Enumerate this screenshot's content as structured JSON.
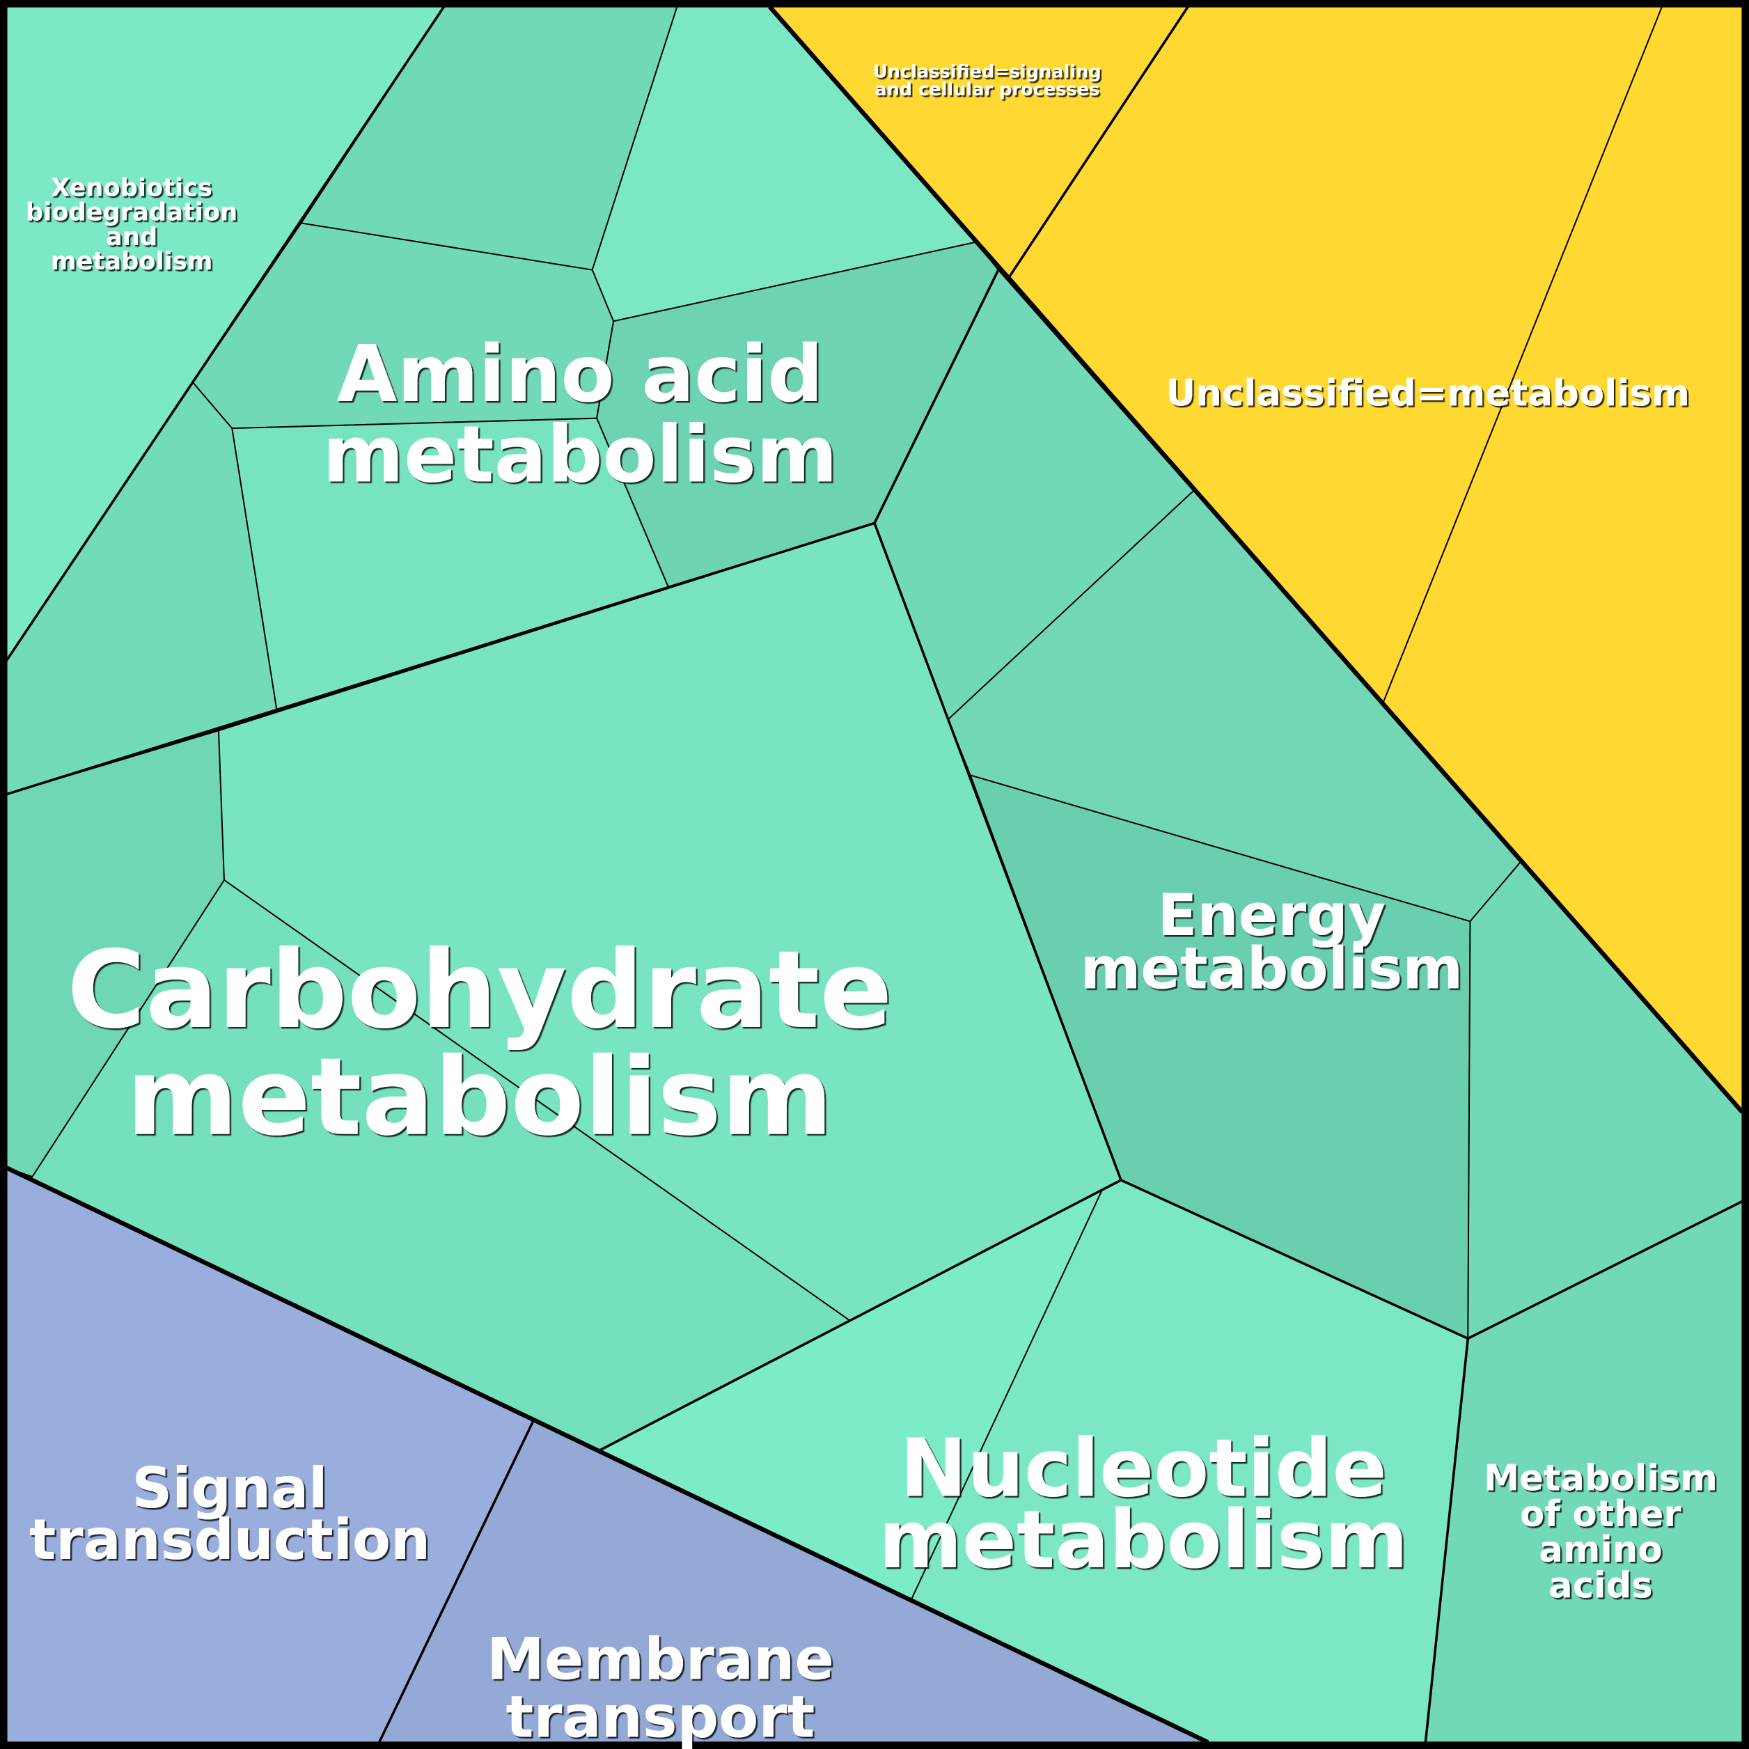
{
  "colors": {
    "metabolism_light": "#7BE9C6",
    "metabolism_mid": "#72D9B8",
    "metabolism_dark": "#6ACFB0",
    "unclassified": "#FFD932",
    "signal": "#9AAEDE",
    "membrane": "#95A9D6",
    "border": "#000000"
  },
  "labels": {
    "xenobiotics": [
      "Xenobiotics",
      "biodegradation",
      "and",
      "metabolism"
    ],
    "unclassified_signaling": [
      "Unclassified=signaling",
      "and cellular processes"
    ],
    "amino_acid": [
      "Amino acid",
      "metabolism"
    ],
    "unclassified_metabolism": [
      "Unclassified=metabolism"
    ],
    "carbohydrate": [
      "Carbohydrate",
      "metabolism"
    ],
    "energy": [
      "Energy",
      "metabolism"
    ],
    "nucleotide": [
      "Nucleotide",
      "metabolism"
    ],
    "other_amino": [
      "Metabolism",
      "of other",
      "amino",
      "acids"
    ],
    "signal": [
      "Signal",
      "transduction"
    ],
    "membrane": [
      "Membrane",
      "transport"
    ]
  }
}
